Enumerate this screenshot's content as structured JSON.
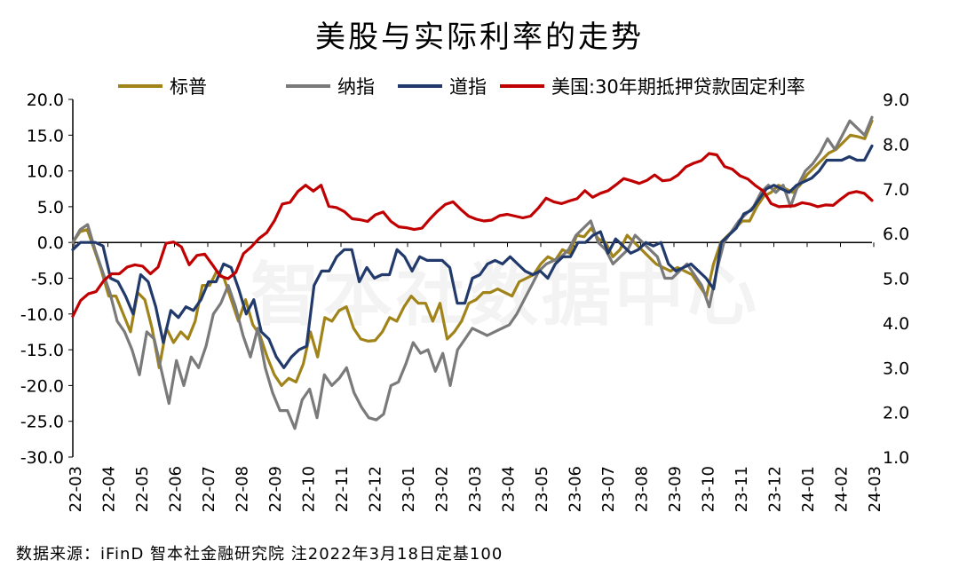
{
  "title": "美股与实际利率的走势",
  "footer": "数据来源：iFinD 智本社金融研究院   注2022年3月18日定基100",
  "watermark": "智本社数据中心",
  "chart_data": {
    "type": "line",
    "title": "美股与实际利率的走势",
    "legend_position": "top",
    "grid": false,
    "x_tick_labels": [
      "22-03",
      "22-04",
      "22-05",
      "22-06",
      "22-07",
      "22-08",
      "22-09",
      "22-10",
      "22-11",
      "22-12",
      "23-01",
      "23-02",
      "23-03",
      "23-04",
      "23-05",
      "23-06",
      "23-07",
      "23-08",
      "23-09",
      "23-10",
      "23-11",
      "23-12",
      "24-01",
      "24-02",
      "24-03"
    ],
    "y_left": {
      "min": -30,
      "max": 20,
      "step": 5,
      "ticks": [
        "-30.0",
        "-25.0",
        "-20.0",
        "-15.0",
        "-10.0",
        "-5.0",
        "0.0",
        "5.0",
        "10.0",
        "15.0",
        "20.0"
      ]
    },
    "y_right": {
      "min": 1.0,
      "max": 9.0,
      "step": 1,
      "ticks": [
        "1.0",
        "2.0",
        "3.0",
        "4.0",
        "5.0",
        "6.0",
        "7.0",
        "8.0",
        "9.0"
      ]
    },
    "series": [
      {
        "name": "标普",
        "axis": "left",
        "color": "#a08319",
        "values": [
          0,
          1.5,
          1.8,
          -1,
          -4,
          -7.5,
          -7.5,
          -10,
          -12.5,
          -7,
          -8,
          -12,
          -17.5,
          -12,
          -14,
          -12.5,
          -13.5,
          -11,
          -6,
          -6,
          -4,
          -5,
          -8,
          -11,
          -8,
          -11.5,
          -13,
          -16,
          -18.5,
          -20,
          -19,
          -19.5,
          -17,
          -12.5,
          -16,
          -10.5,
          -11,
          -9.5,
          -9,
          -12,
          -13.5,
          -13.8,
          -13.7,
          -12.5,
          -10.5,
          -11,
          -9,
          -7.5,
          -8.5,
          -8.5,
          -11,
          -8.5,
          -13.5,
          -12.5,
          -11,
          -8.5,
          -8,
          -7,
          -7,
          -6.5,
          -7,
          -7.5,
          -5.5,
          -5,
          -4.5,
          -3,
          -2,
          -2.5,
          -1,
          -1.5,
          1,
          0.8,
          2,
          0.5,
          0,
          -2,
          -1,
          1,
          0,
          -1,
          -2,
          -3,
          -3.5,
          -4,
          -3.5,
          -4,
          -4.5,
          -6,
          -7.5,
          -3,
          0,
          1,
          2,
          3,
          3,
          5,
          6.5,
          7,
          8,
          7.5,
          7,
          8,
          9.5,
          10.5,
          11.5,
          12.5,
          13,
          14,
          15,
          14.8,
          14.5,
          17
        ]
      },
      {
        "name": "纳指",
        "axis": "left",
        "color": "#7a7a7a",
        "values": [
          0,
          1.8,
          2.5,
          -1,
          -4,
          -7,
          -11,
          -12.5,
          -15,
          -18.5,
          -12.5,
          -13.5,
          -18,
          -22.5,
          -16.5,
          -20,
          -16,
          -17.5,
          -14.5,
          -10,
          -8.5,
          -6,
          -9,
          -13,
          -16,
          -12,
          -17.5,
          -21,
          -23.5,
          -23.5,
          -26,
          -22,
          -20.5,
          -24.5,
          -18.5,
          -20,
          -19,
          -17.5,
          -21,
          -23,
          -24.5,
          -24.8,
          -24,
          -20,
          -19.5,
          -17,
          -14,
          -15.5,
          -15,
          -18,
          -15.5,
          -20,
          -15,
          -13.5,
          -12,
          -12.5,
          -13,
          -12.5,
          -12,
          -11.5,
          -10,
          -8,
          -6,
          -4,
          -3,
          -2.5,
          -2,
          -1,
          1,
          2,
          3,
          0,
          -1,
          -3,
          -2,
          -1,
          1,
          0,
          -1,
          -2,
          -5,
          -5,
          -4,
          -3,
          -4.5,
          -6,
          -9,
          -4,
          0,
          1.5,
          3,
          4,
          5,
          7,
          8,
          7,
          8,
          5,
          8,
          10,
          11,
          12.5,
          14.5,
          13,
          15,
          17,
          16,
          15,
          17.5
        ]
      },
      {
        "name": "道指",
        "axis": "left",
        "color": "#213a6b",
        "values": [
          -1,
          0,
          0,
          0,
          -0.5,
          -5,
          -5.5,
          -7.5,
          -10,
          -4.5,
          -5.5,
          -9,
          -14,
          -9.5,
          -10.5,
          -9,
          -9.5,
          -8,
          -5.5,
          -5.5,
          -3,
          -3.5,
          -6.5,
          -10,
          -8,
          -12.5,
          -13.5,
          -16,
          -17.5,
          -16,
          -15,
          -14.5,
          -6,
          -4,
          -4,
          -2,
          -1,
          -1,
          -5.5,
          -3.5,
          -5,
          -4.5,
          -4.5,
          -1,
          -2,
          -4,
          -2,
          -2.5,
          -2.5,
          -2.5,
          -3.5,
          -8.5,
          -8.5,
          -5,
          -4.5,
          -3,
          -2.5,
          -3,
          -2,
          -3,
          -4,
          -4.5,
          -4,
          -5,
          -3,
          -2,
          -2,
          0,
          0,
          1,
          1.5,
          -1.5,
          0.5,
          -0.5,
          -1.5,
          -1,
          0,
          -0.5,
          0,
          -3,
          -4,
          -3.5,
          -3,
          -4,
          -5,
          -6.5,
          0,
          1,
          2,
          4,
          4.5,
          6,
          7.5,
          8,
          7.5,
          7,
          8,
          8.5,
          9,
          10,
          11.5,
          11.5,
          11.5,
          12,
          11.5,
          11.5,
          13.5
        ]
      },
      {
        "name": "美国:30年期抵押贷款固定利率",
        "axis": "right",
        "color": "#c00000",
        "values": [
          4.15,
          4.5,
          4.65,
          4.7,
          4.95,
          5.1,
          5.1,
          5.25,
          5.3,
          5.27,
          5.1,
          5.25,
          5.78,
          5.81,
          5.7,
          5.3,
          5.51,
          5.54,
          5.3,
          5.05,
          4.99,
          5.13,
          5.55,
          5.7,
          5.89,
          6.02,
          6.29,
          6.66,
          6.7,
          6.94,
          7.08,
          6.95,
          7.08,
          6.61,
          6.58,
          6.49,
          6.33,
          6.31,
          6.27,
          6.42,
          6.48,
          6.27,
          6.15,
          6.13,
          6.09,
          6.12,
          6.32,
          6.5,
          6.65,
          6.71,
          6.54,
          6.39,
          6.32,
          6.28,
          6.3,
          6.4,
          6.43,
          6.39,
          6.35,
          6.39,
          6.57,
          6.79,
          6.71,
          6.67,
          6.73,
          6.78,
          6.96,
          6.81,
          6.9,
          6.96,
          7.09,
          7.23,
          7.18,
          7.12,
          7.19,
          7.31,
          7.18,
          7.2,
          7.31,
          7.49,
          7.57,
          7.63,
          7.79,
          7.76,
          7.5,
          7.44,
          7.29,
          7.22,
          7.07,
          6.95,
          6.67,
          6.6,
          6.61,
          6.62,
          6.69,
          6.66,
          6.6,
          6.64,
          6.63,
          6.77,
          6.9,
          6.94,
          6.9,
          6.74
        ]
      }
    ]
  }
}
